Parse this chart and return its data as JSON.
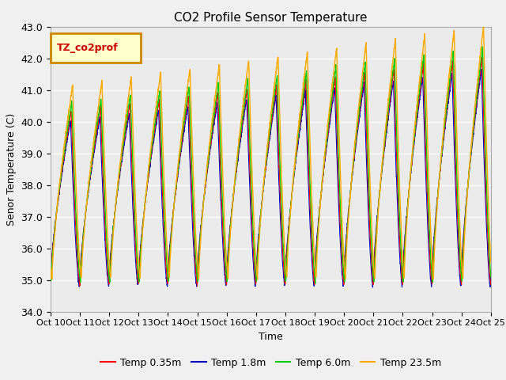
{
  "title": "CO2 Profile Sensor Temperature",
  "ylabel": "Senor Temperature (C)",
  "xlabel": "Time",
  "ylim": [
    34.0,
    43.0
  ],
  "yticks": [
    34.0,
    35.0,
    36.0,
    37.0,
    38.0,
    39.0,
    40.0,
    41.0,
    42.0,
    43.0
  ],
  "xtick_labels": [
    "Oct 10",
    "Oct 11",
    "Oct 12",
    "Oct 13",
    "Oct 14",
    "Oct 15",
    "Oct 16",
    "Oct 17",
    "Oct 18",
    "Oct 19",
    "Oct 20",
    "Oct 21",
    "Oct 22",
    "Oct 23",
    "Oct 24",
    "Oct 25"
  ],
  "series_colors": [
    "#ff0000",
    "#0000bb",
    "#00cc00",
    "#ffaa00"
  ],
  "series_labels": [
    "Temp 0.35m",
    "Temp 1.8m",
    "Temp 6.0m",
    "Temp 23.5m"
  ],
  "legend_label": "TZ_co2prof",
  "legend_label_color": "#cc0000",
  "legend_box_facecolor": "#ffffcc",
  "legend_box_edgecolor": "#cc8800",
  "plot_bg": "#ebebeb",
  "grid_color": "#ffffff",
  "title_fontsize": 11,
  "tick_fontsize": 9,
  "label_fontsize": 9
}
